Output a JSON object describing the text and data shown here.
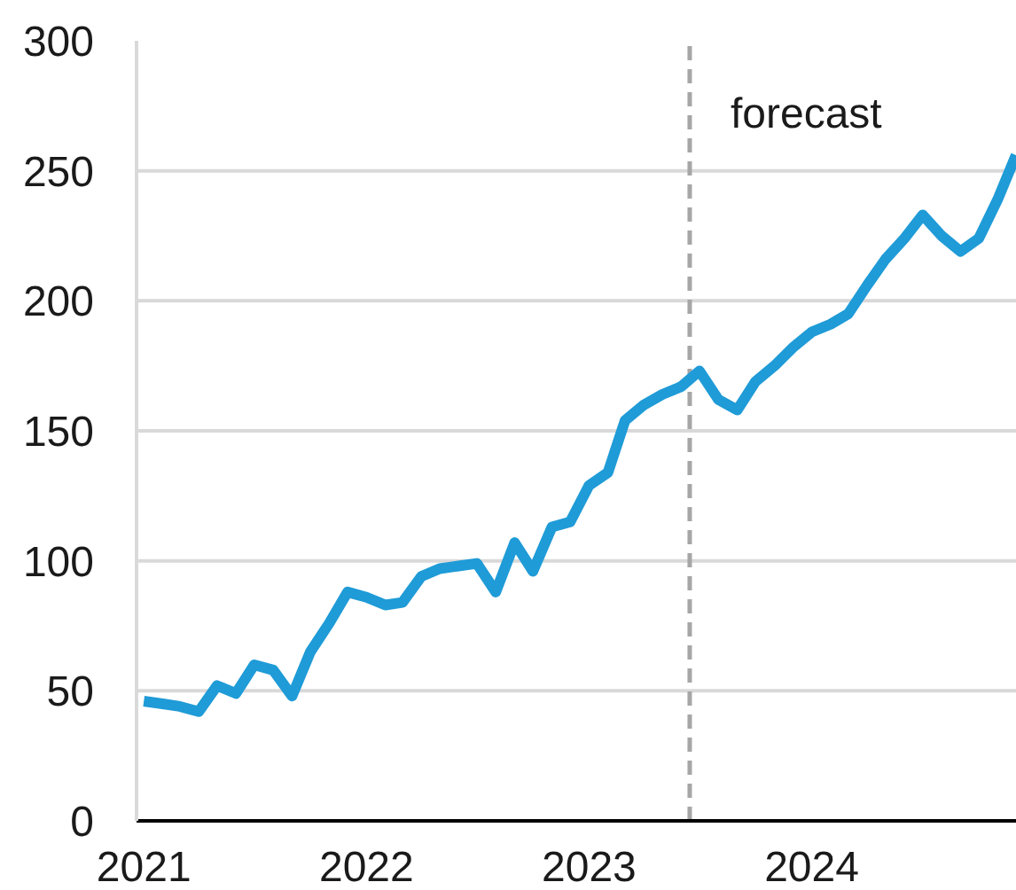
{
  "chart_data": {
    "type": "line",
    "x": [
      "2021-01",
      "2021-02",
      "2021-03",
      "2021-04",
      "2021-05",
      "2021-06",
      "2021-07",
      "2021-08",
      "2021-09",
      "2021-10",
      "2021-11",
      "2021-12",
      "2022-01",
      "2022-02",
      "2022-03",
      "2022-04",
      "2022-05",
      "2022-06",
      "2022-07",
      "2022-08",
      "2022-09",
      "2022-10",
      "2022-11",
      "2022-12",
      "2023-01",
      "2023-02",
      "2023-03",
      "2023-04",
      "2023-05",
      "2023-06",
      "2023-07",
      "2023-08",
      "2023-09",
      "2023-10",
      "2023-11",
      "2023-12",
      "2024-01",
      "2024-02",
      "2024-03",
      "2024-04",
      "2024-05",
      "2024-06",
      "2024-07",
      "2024-08",
      "2024-09",
      "2024-10",
      "2024-11",
      "2024-12"
    ],
    "series": [
      {
        "color": "#1f9bd7",
        "values": [
          46,
          45,
          44,
          42,
          52,
          49,
          60,
          58,
          48,
          65,
          76,
          88,
          86,
          83,
          84,
          94,
          97,
          98,
          99,
          88,
          107,
          96,
          113,
          115,
          129,
          134,
          154,
          160,
          164,
          167,
          173,
          162,
          158,
          169,
          175,
          182,
          188,
          191,
          195,
          206,
          216,
          224,
          233,
          225,
          219,
          224,
          239,
          256
        ]
      }
    ],
    "xlim": [
      "2020-12-20",
      "2024-12"
    ],
    "xticks": [
      "2021",
      "2022",
      "2023",
      "2024"
    ],
    "ylim": [
      0,
      300
    ],
    "yticks": [
      0,
      50,
      100,
      150,
      200,
      250,
      300
    ],
    "grid": "y",
    "marker": "none",
    "line_style": "solid",
    "ref_lines": [
      {
        "axis": "x",
        "value": "2023-06-15",
        "label": "forecast",
        "color": "#a6a6a6",
        "line_style": "dashed"
      }
    ]
  }
}
